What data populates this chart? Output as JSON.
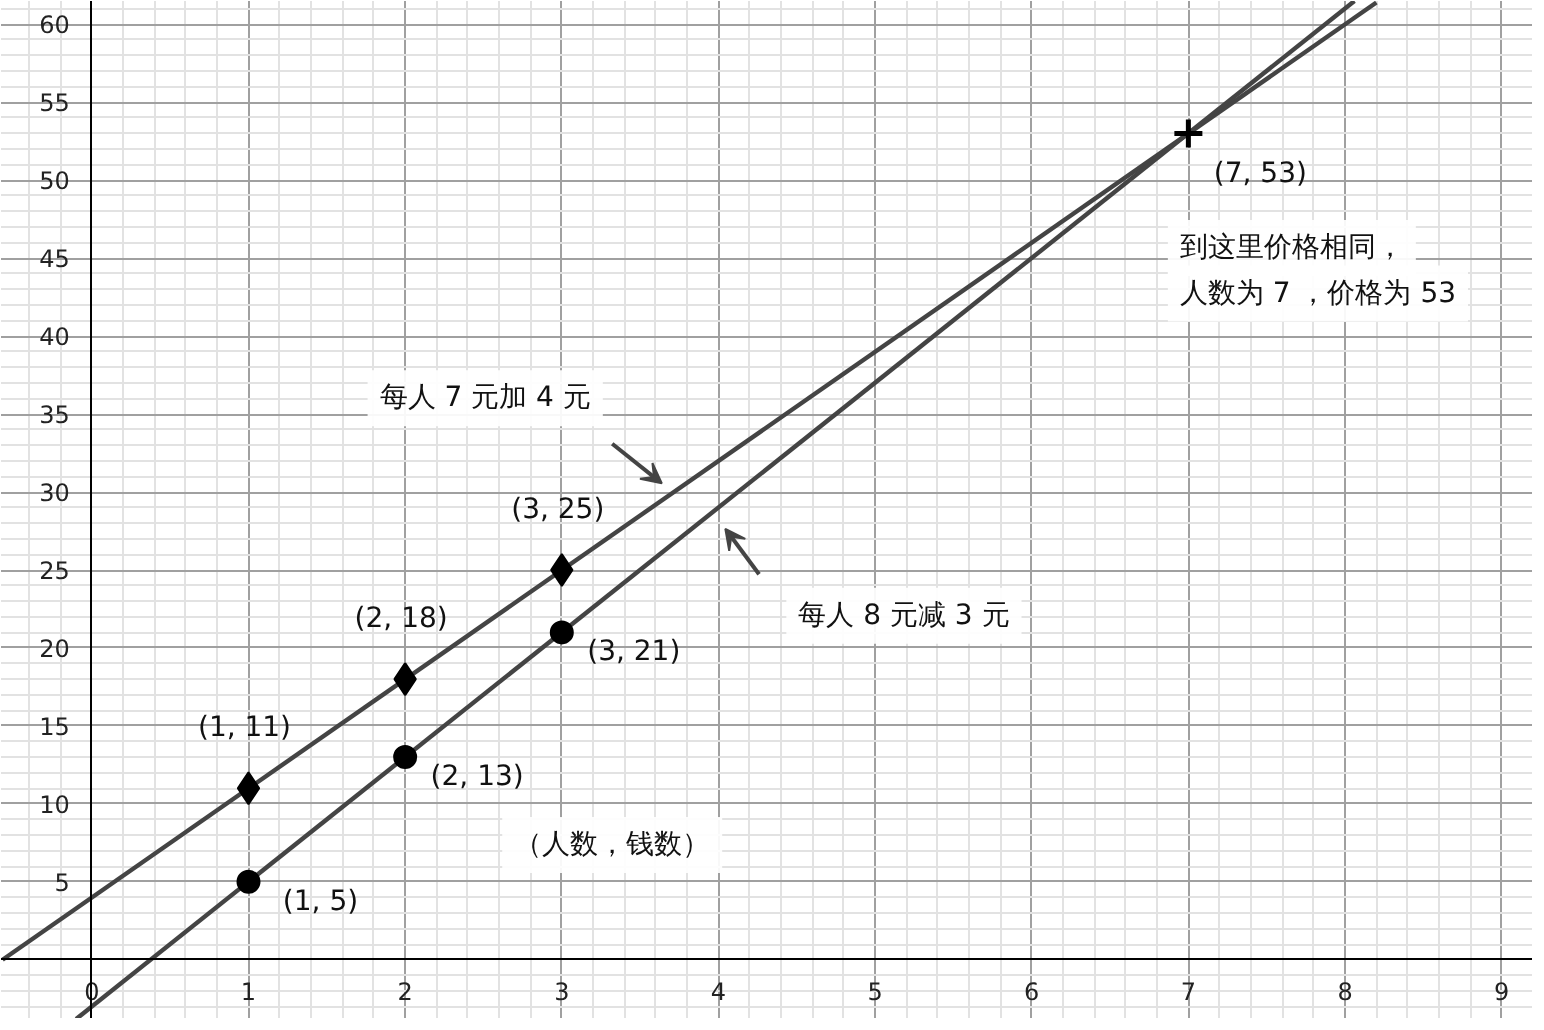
{
  "chart_data": {
    "type": "line",
    "xlim": [
      -0.58,
      9.2
    ],
    "ylim": [
      -3.8,
      61.5
    ],
    "xticks": [
      0,
      1,
      2,
      3,
      4,
      5,
      6,
      7,
      8,
      9
    ],
    "yticks": [
      5,
      10,
      15,
      20,
      25,
      30,
      35,
      40,
      45,
      50,
      55,
      60
    ],
    "grid": true,
    "series": [
      {
        "color": "#444444",
        "x": [
          -0.57,
          8.2
        ],
        "values": [
          0.0,
          61.4
        ]
      },
      {
        "color": "#444444",
        "x": [
          -0.1,
          8.06
        ],
        "values": [
          -3.8,
          61.5
        ]
      },
      {
        "type": "scatter",
        "marker": "diamond",
        "color": "#000000",
        "x": [
          1,
          2,
          3
        ],
        "values": [
          11,
          18,
          25
        ]
      },
      {
        "type": "scatter",
        "marker": "circle",
        "color": "#000000",
        "x": [
          1,
          2,
          3
        ],
        "values": [
          5,
          13,
          21
        ]
      },
      {
        "type": "scatter",
        "marker": "cross",
        "color": "#000000",
        "x": [
          7
        ],
        "values": [
          53
        ]
      }
    ],
    "annotations": [
      {
        "text": "(1, 11)",
        "x": 1,
        "y": 11
      },
      {
        "text": "(2, 18)",
        "x": 2,
        "y": 18
      },
      {
        "text": "(3, 25)",
        "x": 3,
        "y": 25
      },
      {
        "text": "(1, 5)",
        "x": 1,
        "y": 5
      },
      {
        "text": "(2, 13)",
        "x": 2,
        "y": 13
      },
      {
        "text": "(3, 21)",
        "x": 3,
        "y": 21
      },
      {
        "text": "(7, 53)",
        "x": 7,
        "y": 53
      },
      "每人 7 元加 4 元",
      "每人 8 元减 3 元",
      "到这里价格相同，",
      "人数为 7 ，价格为 53",
      "（人数，钱数）"
    ]
  }
}
